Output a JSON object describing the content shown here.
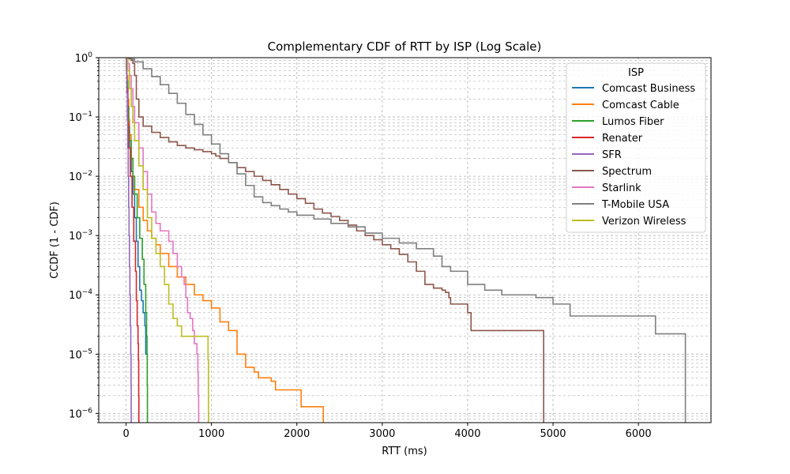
{
  "chart_data": {
    "type": "line",
    "title": "Complementary CDF of RTT by ISP (Log Scale)",
    "xlabel": "RTT (ms)",
    "ylabel": "CCDF (1 - CDF)",
    "xlim": [
      -320,
      6850
    ],
    "ylim": [
      7e-07,
      1
    ],
    "yscale": "log",
    "grid": true,
    "x_ticks": [
      0,
      1000,
      2000,
      3000,
      4000,
      5000,
      6000
    ],
    "y_ticks": [
      {
        "value": 1,
        "label": "10",
        "exp": "0"
      },
      {
        "value": 0.1,
        "label": "10",
        "exp": "−1"
      },
      {
        "value": 0.01,
        "label": "10",
        "exp": "−2"
      },
      {
        "value": 0.001,
        "label": "10",
        "exp": "−3"
      },
      {
        "value": 0.0001,
        "label": "10",
        "exp": "−4"
      },
      {
        "value": 1e-05,
        "label": "10",
        "exp": "−5"
      },
      {
        "value": 1e-06,
        "label": "10",
        "exp": "−6"
      }
    ],
    "legend": {
      "title": "ISP",
      "position": "top-right"
    },
    "series": [
      {
        "name": "Comcast Business",
        "color": "#1f77b4",
        "x": [
          0,
          5,
          10,
          20,
          30,
          40,
          60,
          80,
          100,
          120,
          140,
          160,
          180,
          200,
          220,
          230,
          240
        ],
        "y": [
          1,
          0.7,
          0.4,
          0.15,
          0.06,
          0.03,
          0.012,
          0.005,
          0.002,
          0.0008,
          0.0003,
          0.00012,
          8e-05,
          5e-05,
          3e-05,
          1e-05,
          1e-05
        ]
      },
      {
        "name": "Comcast Cable",
        "color": "#ff7f0e",
        "x": [
          0,
          10,
          20,
          30,
          40,
          60,
          80,
          100,
          150,
          200,
          250,
          300,
          350,
          400,
          500,
          600,
          700,
          800,
          900,
          1000,
          1100,
          1200,
          1300,
          1400,
          1500,
          1550,
          1600,
          1700,
          1750,
          2000,
          2050,
          2300,
          2310
        ],
        "y": [
          1,
          0.5,
          0.2,
          0.09,
          0.05,
          0.02,
          0.01,
          0.006,
          0.003,
          0.0018,
          0.0012,
          0.0009,
          0.0007,
          0.0005,
          0.0003,
          0.0002,
          0.00015,
          0.0001,
          8e-05,
          6e-05,
          3.5e-05,
          2.5e-05,
          1e-05,
          6e-06,
          5e-06,
          4e-06,
          4e-06,
          3.5e-06,
          2.5e-06,
          2.5e-06,
          1.3e-06,
          1.3e-06,
          7e-07
        ]
      },
      {
        "name": "Lumos Fiber",
        "color": "#2ca02c",
        "x": [
          0,
          5,
          10,
          20,
          30,
          40,
          60,
          80,
          100,
          130,
          160,
          190,
          210,
          230,
          240,
          245,
          248,
          250
        ],
        "y": [
          1,
          0.7,
          0.4,
          0.15,
          0.07,
          0.04,
          0.02,
          0.01,
          0.005,
          0.002,
          0.0009,
          0.0004,
          0.00015,
          5e-05,
          2e-05,
          1e-05,
          3e-06,
          7e-07
        ]
      },
      {
        "name": "Renater",
        "color": "#d62728",
        "x": [
          0,
          5,
          10,
          20,
          30,
          50,
          70,
          90,
          110,
          120,
          130,
          140,
          145,
          148,
          150
        ],
        "y": [
          1,
          0.6,
          0.3,
          0.08,
          0.03,
          0.01,
          0.003,
          0.0008,
          0.00025,
          8e-05,
          3e-05,
          1.5e-05,
          8e-06,
          2e-06,
          7e-07
        ]
      },
      {
        "name": "SFR",
        "color": "#9467bd",
        "x": [
          0,
          5,
          10,
          15,
          20,
          25,
          30,
          35,
          40,
          45,
          50,
          55,
          58,
          60
        ],
        "y": [
          1,
          0.6,
          0.25,
          0.09,
          0.03,
          0.01,
          0.003,
          0.001,
          0.0003,
          0.0001,
          3e-05,
          1e-05,
          3e-06,
          7e-07
        ]
      },
      {
        "name": "Spectrum",
        "color": "#8c564b",
        "x": [
          0,
          20,
          40,
          60,
          80,
          100,
          120,
          150,
          200,
          300,
          400,
          500,
          600,
          700,
          800,
          900,
          1000,
          1050,
          1100,
          1200,
          1300,
          1400,
          1500,
          1600,
          1700,
          1800,
          1900,
          2000,
          2100,
          2200,
          2300,
          2400,
          2500,
          2600,
          2700,
          2800,
          2900,
          3000,
          3100,
          3200,
          3300,
          3400,
          3500,
          3600,
          3700,
          3740,
          3780,
          3800,
          4000,
          4040,
          4100,
          4300,
          4500,
          4880,
          4890
        ],
        "y": [
          1,
          0.98,
          0.95,
          0.9,
          0.8,
          0.5,
          0.2,
          0.1,
          0.07,
          0.055,
          0.045,
          0.038,
          0.033,
          0.03,
          0.028,
          0.026,
          0.024,
          0.022,
          0.02,
          0.017,
          0.014,
          0.012,
          0.01,
          0.0085,
          0.0072,
          0.006,
          0.005,
          0.0042,
          0.0035,
          0.0028,
          0.0024,
          0.0021,
          0.0018,
          0.0015,
          0.0012,
          0.001,
          0.00085,
          0.0007,
          0.0006,
          0.00048,
          0.00036,
          0.00025,
          0.00015,
          0.00013,
          0.00012,
          0.00011,
          9e-05,
          7e-05,
          5e-05,
          2.5e-05,
          2.5e-05,
          2.5e-05,
          2.5e-05,
          2.5e-05,
          7e-07
        ]
      },
      {
        "name": "Starlink",
        "color": "#e377c2",
        "x": [
          0,
          20,
          40,
          60,
          80,
          100,
          150,
          200,
          250,
          300,
          350,
          400,
          500,
          550,
          600,
          650,
          680,
          700,
          720,
          750,
          780,
          800,
          830,
          840,
          845,
          850
        ],
        "y": [
          1,
          0.8,
          0.5,
          0.3,
          0.15,
          0.08,
          0.03,
          0.012,
          0.005,
          0.0025,
          0.0016,
          0.0012,
          0.0008,
          0.0005,
          0.0003,
          0.0002,
          0.00015,
          9e-05,
          5e-05,
          4e-05,
          2.5e-05,
          1.5e-05,
          1e-05,
          5e-06,
          2e-06,
          7e-07
        ]
      },
      {
        "name": "T-Mobile USA",
        "color": "#7f7f7f",
        "x": [
          0,
          50,
          100,
          200,
          300,
          400,
          500,
          600,
          700,
          800,
          900,
          1000,
          1100,
          1200,
          1300,
          1400,
          1500,
          1600,
          1700,
          1800,
          1900,
          2000,
          2200,
          2400,
          2600,
          2800,
          3000,
          3200,
          3400,
          3600,
          3700,
          3800,
          4000,
          4200,
          4400,
          4600,
          4800,
          5000,
          5200,
          5500,
          6000,
          6200,
          6500,
          6540,
          6550
        ],
        "y": [
          1,
          0.95,
          0.85,
          0.65,
          0.48,
          0.35,
          0.25,
          0.17,
          0.11,
          0.075,
          0.05,
          0.035,
          0.024,
          0.017,
          0.011,
          0.007,
          0.0045,
          0.0036,
          0.0032,
          0.0028,
          0.0025,
          0.0022,
          0.0019,
          0.0016,
          0.0014,
          0.0011,
          0.0009,
          0.00075,
          0.0006,
          0.00045,
          0.0003,
          0.00025,
          0.00015,
          0.00012,
          0.0001,
          0.0001,
          9e-05,
          7e-05,
          4.4e-05,
          4.4e-05,
          4.4e-05,
          2.2e-05,
          2.2e-05,
          2.2e-05,
          7e-07
        ]
      },
      {
        "name": "Verizon Wireless",
        "color": "#bcbd22",
        "x": [
          0,
          20,
          40,
          60,
          80,
          100,
          150,
          200,
          250,
          300,
          350,
          400,
          450,
          500,
          550,
          600,
          650,
          700,
          750,
          800,
          900,
          950,
          960,
          965
        ],
        "y": [
          1,
          0.6,
          0.3,
          0.15,
          0.08,
          0.04,
          0.015,
          0.006,
          0.002,
          0.0009,
          0.0005,
          0.0003,
          0.00015,
          7e-05,
          4e-05,
          3e-05,
          2e-05,
          2e-05,
          2e-05,
          2e-05,
          2e-05,
          2e-05,
          8e-06,
          7e-07
        ]
      }
    ]
  }
}
